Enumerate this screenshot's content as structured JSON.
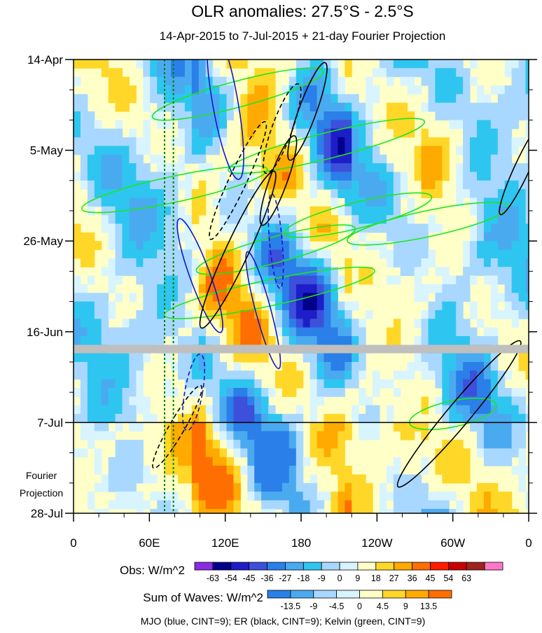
{
  "chart_data": {
    "type": "heatmap",
    "title": "OLR anomalies: 27.5°S - 2.5°S",
    "subtitle": "14-Apr-2015 to 7-Jul-2015 + 21-day Fourier Projection",
    "xlabel": "",
    "ylabel": "",
    "x_ticks": [
      {
        "label": "0",
        "lon": 0
      },
      {
        "label": "60E",
        "lon": 60
      },
      {
        "label": "120E",
        "lon": 120
      },
      {
        "label": "180",
        "lon": 180
      },
      {
        "label": "120W",
        "lon": 240
      },
      {
        "label": "60W",
        "lon": 300
      },
      {
        "label": "0",
        "lon": 360
      }
    ],
    "xlim": [
      0,
      360
    ],
    "y_ticks": [
      {
        "label": "14-Apr",
        "day": 0
      },
      {
        "label": "5-May",
        "day": 21
      },
      {
        "label": "26-May",
        "day": 42
      },
      {
        "label": "16-Jun",
        "day": 63
      },
      {
        "label": "7-Jul",
        "day": 84
      },
      {
        "label": "28-Jul",
        "day": 105
      }
    ],
    "ylim": [
      "2015-04-14",
      "2015-07-28"
    ],
    "observed_end": "7-Jul",
    "projection_label": [
      "Fourier",
      "Projection"
    ],
    "reference_lines_lon": [
      72,
      79
    ],
    "missing_data_bands": [
      {
        "from_lon": 0,
        "to_lon": 360,
        "date": "2015-06-20"
      }
    ],
    "obs_legend": {
      "label": "Obs: W/m^2",
      "ticks": [
        "-63",
        "-54",
        "-45",
        "-36",
        "-27",
        "-18",
        "-9",
        "0",
        "9",
        "18",
        "27",
        "36",
        "45",
        "54",
        "63"
      ],
      "colors": [
        "#8a2be2",
        "#00008b",
        "#1e1ec8",
        "#3c50dc",
        "#2b7fe8",
        "#4aaaf0",
        "#2ec6f0",
        "#a8d8ff",
        "#d8f4ff",
        "#ffffc8",
        "#ffd728",
        "#ffaa00",
        "#ff6e00",
        "#ff1e00",
        "#c80000",
        "#a0221e",
        "#ff78c8"
      ]
    },
    "waves_legend": {
      "label": "Sum of Waves: W/m^2",
      "ticks": [
        "-13.5",
        "-9",
        "-4.5",
        "0",
        "4.5",
        "9",
        "13.5"
      ],
      "colors": [
        "#2b7fe8",
        "#4aaaf0",
        "#a8d8ff",
        "#d8f4ff",
        "#ffffc8",
        "#ffd728",
        "#ffaa00",
        "#ff6e00"
      ]
    },
    "contour_note": "MJO (blue, CINT=9); ER (black, CINT=9); Kelvin (green, CINT=9)",
    "series": [
      {
        "name": "MJO",
        "color": "#1414d2"
      },
      {
        "name": "ER",
        "color": "#000000"
      },
      {
        "name": "Kelvin",
        "color": "#1ee61e"
      }
    ]
  }
}
